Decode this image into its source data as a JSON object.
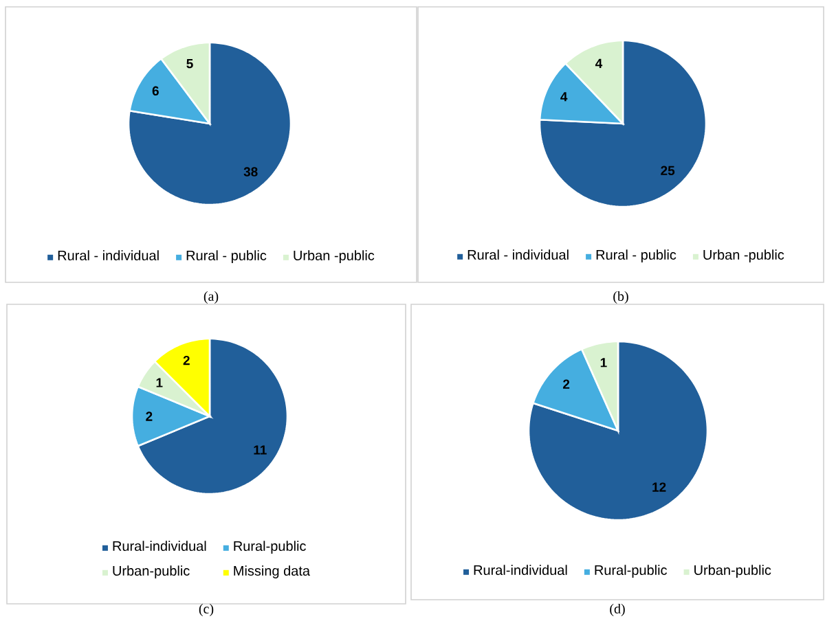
{
  "chart_data": [
    {
      "type": "pie",
      "categories": [
        "Rural - individual",
        "Rural - public",
        "Urban -public"
      ],
      "values": [
        38,
        6,
        5
      ],
      "colors": [
        "#215f9a",
        "#45aee0",
        "#d9f2d0"
      ],
      "data_labels": true,
      "legend": "bottom",
      "annotations": [
        "(a)"
      ]
    },
    {
      "type": "pie",
      "categories": [
        "Rural - individual",
        "Rural - public",
        "Urban -public"
      ],
      "values": [
        25,
        4,
        4
      ],
      "colors": [
        "#215f9a",
        "#45aee0",
        "#d9f2d0"
      ],
      "data_labels": true,
      "legend": "bottom",
      "annotations": [
        "(b)"
      ]
    },
    {
      "type": "pie",
      "categories": [
        "Rural-individual",
        "Rural-public",
        "Urban-public",
        "Missing data"
      ],
      "values": [
        11,
        2,
        1,
        2
      ],
      "colors": [
        "#215f9a",
        "#45aee0",
        "#d9f2d0",
        "#ffff00"
      ],
      "data_labels": true,
      "legend": "bottom",
      "annotations": [
        "(c)"
      ]
    },
    {
      "type": "pie",
      "categories": [
        "Rural-individual",
        "Rural-public",
        "Urban-public"
      ],
      "values": [
        12,
        2,
        1
      ],
      "colors": [
        "#215f9a",
        "#45aee0",
        "#d9f2d0"
      ],
      "data_labels": true,
      "legend": "bottom",
      "annotations": [
        "(d)"
      ]
    }
  ]
}
